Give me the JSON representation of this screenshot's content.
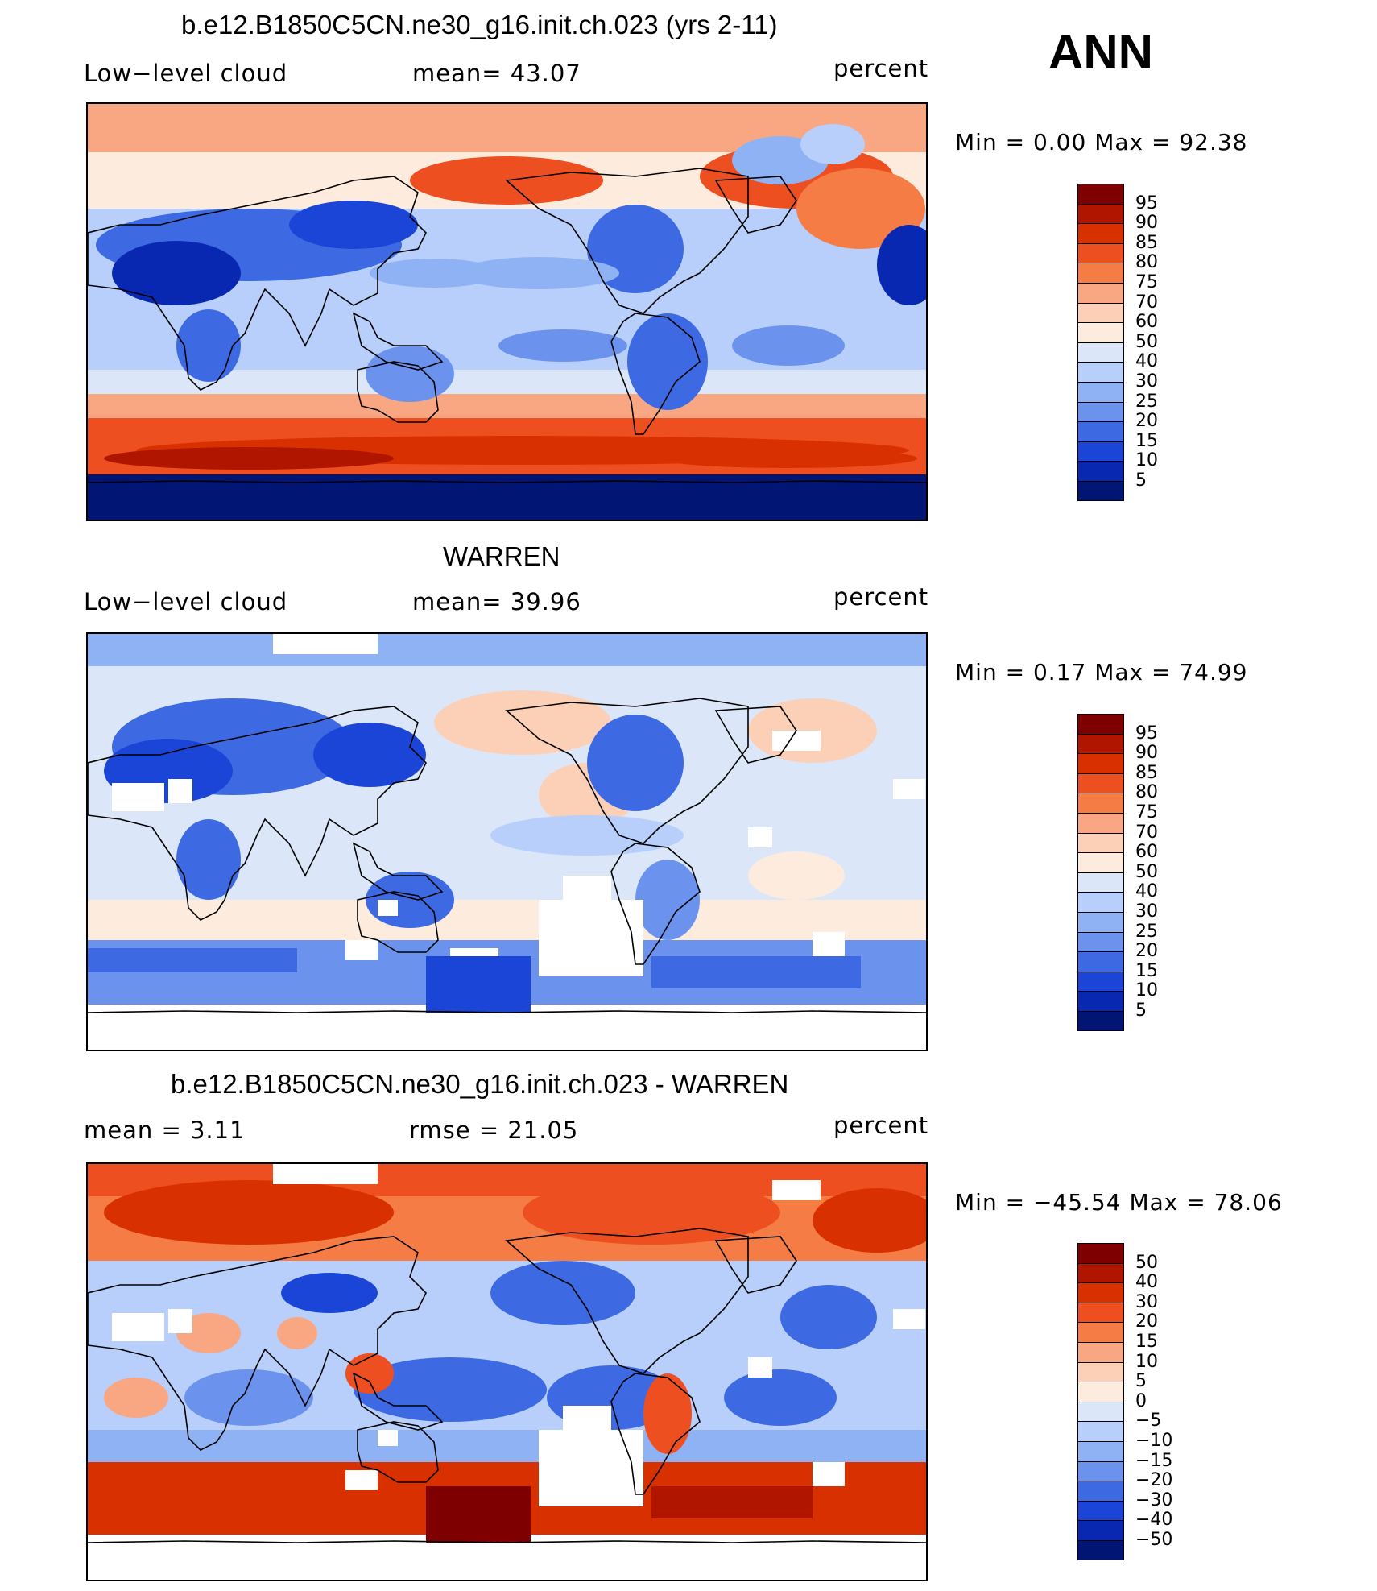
{
  "season": "ANN",
  "colors": {
    "abs_scale": [
      "#7f0000",
      "#b01500",
      "#d93000",
      "#ee4f20",
      "#f67c45",
      "#f9a682",
      "#fbd0b7",
      "#fdebdd",
      "#dbe7f8",
      "#b7cffa",
      "#8fb2f5",
      "#6b93ee",
      "#3d6ae2",
      "#1a45d6",
      "#0828b2",
      "#001574"
    ],
    "diff_scale": [
      "#7f0000",
      "#b01500",
      "#d93000",
      "#ee4f20",
      "#f67c45",
      "#f9a682",
      "#fbd0b7",
      "#fdebdd",
      "#dbe7f8",
      "#b7cffa",
      "#8fb2f5",
      "#6b93ee",
      "#3d6ae2",
      "#1a45d6",
      "#0828b2",
      "#001574"
    ]
  },
  "panels": [
    {
      "title": "b.e12.B1850C5CN.ne30_g16.init.ch.023 (yrs 2-11)",
      "left_label": "Low−level cloud",
      "center_label": "mean=   43.07",
      "right_label": "percent",
      "minmax": "Min =     0.00 Max =    92.38",
      "colorbar_labels": [
        "95",
        "90",
        "85",
        "80",
        "75",
        "70",
        "60",
        "50",
        "40",
        "30",
        "25",
        "20",
        "15",
        "10",
        "5"
      ]
    },
    {
      "title": "WARREN",
      "left_label": "Low−level cloud",
      "center_label": "mean=   39.96",
      "right_label": "percent",
      "minmax": "Min =     0.17 Max =    74.99",
      "colorbar_labels": [
        "95",
        "90",
        "85",
        "80",
        "75",
        "70",
        "60",
        "50",
        "40",
        "30",
        "25",
        "20",
        "15",
        "10",
        "5"
      ]
    },
    {
      "title": "b.e12.B1850C5CN.ne30_g16.init.ch.023 - WARREN",
      "left_label": "mean =     3.11",
      "center_label": "rmse =    21.05",
      "right_label": "percent",
      "minmax": "Min = −45.54 Max =    78.06",
      "colorbar_labels": [
        "50",
        "40",
        "30",
        "20",
        "15",
        "10",
        "5",
        "0",
        "−5",
        "−10",
        "−15",
        "−20",
        "−30",
        "−40",
        "−50"
      ]
    }
  ],
  "chart_data": [
    {
      "type": "heatmap",
      "title": "b.e12.B1850C5CN.ne30_g16.init.ch.023 (yrs 2-11)",
      "variable": "Low-level cloud",
      "units": "percent",
      "mean": 43.07,
      "min": 0.0,
      "max": 92.38,
      "contour_levels": [
        5,
        10,
        15,
        20,
        25,
        30,
        40,
        50,
        60,
        70,
        75,
        80,
        85,
        90,
        95
      ]
    },
    {
      "type": "heatmap",
      "title": "WARREN",
      "variable": "Low-level cloud",
      "units": "percent",
      "mean": 39.96,
      "min": 0.17,
      "max": 74.99,
      "contour_levels": [
        5,
        10,
        15,
        20,
        25,
        30,
        40,
        50,
        60,
        70,
        75,
        80,
        85,
        90,
        95
      ]
    },
    {
      "type": "heatmap",
      "title": "b.e12.B1850C5CN.ne30_g16.init.ch.023 - WARREN",
      "units": "percent",
      "mean": 3.11,
      "rmse": 21.05,
      "min": -45.54,
      "max": 78.06,
      "contour_levels": [
        -50,
        -40,
        -30,
        -20,
        -15,
        -10,
        -5,
        0,
        5,
        10,
        15,
        20,
        30,
        40,
        50
      ]
    }
  ]
}
